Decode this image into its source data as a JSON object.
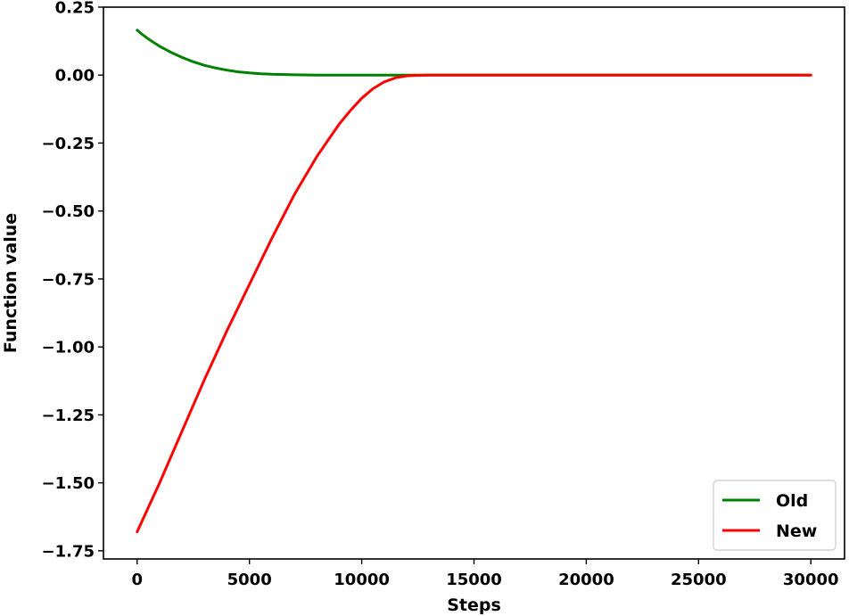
{
  "chart_data": {
    "type": "line",
    "title": "",
    "xlabel": "Steps",
    "ylabel": "Function value",
    "xlim": [
      -1500,
      31500
    ],
    "ylim": [
      -1.78,
      0.25
    ],
    "xticks": [
      0,
      5000,
      10000,
      15000,
      20000,
      25000,
      30000
    ],
    "xtick_labels": [
      "0",
      "5000",
      "10000",
      "15000",
      "20000",
      "25000",
      "30000"
    ],
    "yticks": [
      0.25,
      0.0,
      -0.25,
      -0.5,
      -0.75,
      -1.0,
      -1.25,
      -1.5,
      -1.75
    ],
    "ytick_labels": [
      "0.25",
      "0.00",
      "−0.25",
      "−0.50",
      "−0.75",
      "−1.00",
      "−1.25",
      "−1.50",
      "−1.75"
    ],
    "grid": false,
    "legend_position": "lower-right",
    "series": [
      {
        "name": "Old",
        "color": "#008000",
        "x": [
          0,
          250,
          500,
          750,
          1000,
          1500,
          2000,
          2500,
          3000,
          3500,
          4000,
          4500,
          5000,
          5500,
          6000,
          7000,
          8000,
          9000,
          10000,
          12000,
          15000,
          20000,
          25000,
          30000
        ],
        "y": [
          0.165,
          0.148,
          0.133,
          0.119,
          0.106,
          0.084,
          0.065,
          0.049,
          0.036,
          0.026,
          0.018,
          0.012,
          0.008,
          0.005,
          0.003,
          0.001,
          0.0,
          0.0,
          0.0,
          0.0,
          0.0,
          0.0,
          0.0,
          0.0
        ]
      },
      {
        "name": "New",
        "color": "#ff0000",
        "x": [
          0,
          1000,
          2000,
          3000,
          4000,
          5000,
          6000,
          7000,
          8000,
          9000,
          9500,
          10000,
          10500,
          11000,
          11500,
          12000,
          12500,
          13000,
          14000,
          15000,
          20000,
          25000,
          30000
        ],
        "y": [
          -1.68,
          -1.5,
          -1.31,
          -1.12,
          -0.94,
          -0.77,
          -0.6,
          -0.44,
          -0.3,
          -0.18,
          -0.13,
          -0.085,
          -0.05,
          -0.025,
          -0.01,
          -0.003,
          -0.001,
          0.0,
          0.0,
          0.0,
          0.0,
          0.0,
          0.0
        ]
      }
    ]
  }
}
